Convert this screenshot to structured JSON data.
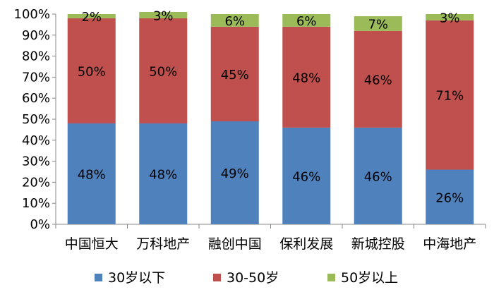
{
  "chart_data": {
    "type": "bar",
    "stacked": true,
    "percent": true,
    "categories": [
      "中国恒大",
      "万科地产",
      "融创中国",
      "保利发展",
      "新城控股",
      "中海地产"
    ],
    "series": [
      {
        "name": "30岁以下",
        "color": "#4f81bd",
        "values": [
          48,
          48,
          49,
          46,
          46,
          26
        ],
        "labels": [
          "48%",
          "48%",
          "49%",
          "46%",
          "46%",
          "26%"
        ]
      },
      {
        "name": "30-50岁",
        "color": "#c0504d",
        "values": [
          50,
          50,
          45,
          48,
          46,
          71
        ],
        "labels": [
          "50%",
          "50%",
          "45%",
          "48%",
          "46%",
          "71%"
        ]
      },
      {
        "name": "50岁以上",
        "color": "#9bbb59",
        "values": [
          2,
          3,
          6,
          6,
          7,
          3
        ],
        "labels": [
          "2%",
          "3%",
          "6%",
          "6%",
          "7%",
          "3%"
        ]
      }
    ],
    "y_ticks": [
      "0%",
      "10%",
      "20%",
      "30%",
      "40%",
      "50%",
      "60%",
      "70%",
      "80%",
      "90%",
      "100%"
    ],
    "ylim": [
      0,
      100
    ],
    "legend_position": "bottom",
    "grid": false
  }
}
